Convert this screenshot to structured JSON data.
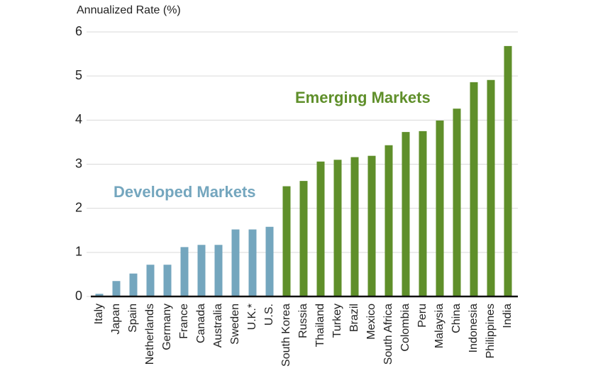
{
  "chart_data": {
    "type": "bar",
    "y_label": "Annualized Rate (%)",
    "categories": [
      "Italy",
      "Japan",
      "Spain",
      "Netherlands",
      "Germany",
      "France",
      "Canada",
      "Australia",
      "Sweden",
      "U.K.*",
      "U.S.",
      "South Korea",
      "Russia",
      "Thailand",
      "Turkey",
      "Brazil",
      "Mexico",
      "South Africa",
      "Colombia",
      "Peru",
      "Malaysia",
      "China",
      "Indonesia",
      "Philippines",
      "India"
    ],
    "series": [
      {
        "name": "Developed Markets",
        "color": "#74a6be",
        "values": [
          0.06,
          0.35,
          0.52,
          0.72,
          0.72,
          1.12,
          1.17,
          1.17,
          1.52,
          1.52,
          1.58,
          null,
          null,
          null,
          null,
          null,
          null,
          null,
          null,
          null,
          null,
          null,
          null,
          null,
          null
        ]
      },
      {
        "name": "Emerging Markets",
        "color": "#5f8f2a",
        "values": [
          null,
          null,
          null,
          null,
          null,
          null,
          null,
          null,
          null,
          null,
          null,
          2.5,
          2.62,
          3.06,
          3.1,
          3.16,
          3.19,
          3.43,
          3.73,
          3.75,
          3.99,
          4.26,
          4.86,
          4.91,
          5.68
        ]
      }
    ],
    "ylim": [
      0,
      6
    ],
    "yticks": [
      0,
      1,
      2,
      3,
      4,
      5,
      6
    ],
    "grid": true
  }
}
